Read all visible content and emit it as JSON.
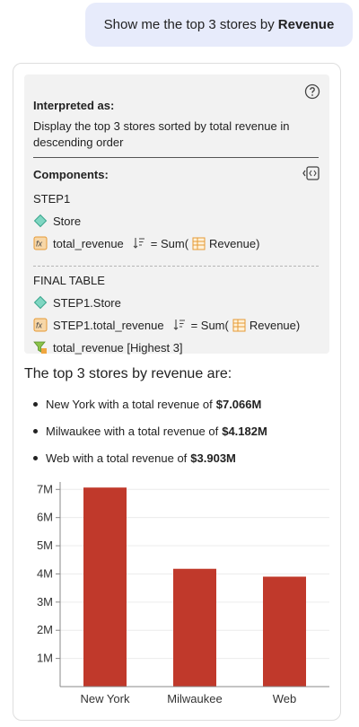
{
  "user_message": {
    "prefix": "Show me the top 3 stores by",
    "bold": "Revenue"
  },
  "interpretation": {
    "heading": "Interpreted as:",
    "text_line1": "Display the top 3 stores sorted by total revenue in",
    "text_line2": "descending order",
    "components_heading": "Components:",
    "step1": {
      "label": "STEP1",
      "dimension": "Store",
      "measure": "total_revenue",
      "formula_prefix": "= Sum(",
      "formula_column": "Revenue",
      "formula_suffix": ")"
    },
    "final_table": {
      "label": "FINAL TABLE",
      "dimension": "STEP1.Store",
      "measure": "STEP1.total_revenue",
      "formula_prefix": "= Sum(",
      "formula_column": "Revenue",
      "formula_suffix": ")",
      "filter": "total_revenue [Highest 3]"
    }
  },
  "answer": {
    "title": "The top 3 stores by revenue are:",
    "bullets": [
      {
        "text": "New York with a total revenue of",
        "value": "$7.066M"
      },
      {
        "text": "Milwaukee with a total revenue of",
        "value": "$4.182M"
      },
      {
        "text": "Web with a total revenue of",
        "value": "$3.903M"
      }
    ]
  },
  "colors": {
    "bar": "#c0392b",
    "filter_icon": "#8bc34a",
    "dimension_icon": "#7fd6c2",
    "measure_icon": "#f0a640"
  },
  "icons": [
    "help-circle-icon",
    "components-panel-icon",
    "dimension-diamond-icon",
    "fx-measure-icon",
    "sort-descending-icon",
    "column-table-icon",
    "filter-icon"
  ],
  "chart_data": {
    "type": "bar",
    "categories": [
      "New York",
      "Milwaukee",
      "Web"
    ],
    "values": [
      7.066,
      4.182,
      3.903
    ],
    "ylim": [
      0,
      7.2
    ],
    "yticks": [
      1,
      2,
      3,
      4,
      5,
      6,
      7
    ],
    "ytick_labels": [
      "1M",
      "2M",
      "3M",
      "4M",
      "5M",
      "6M",
      "7M"
    ],
    "grid": true,
    "title": "",
    "xlabel": "",
    "ylabel": ""
  }
}
